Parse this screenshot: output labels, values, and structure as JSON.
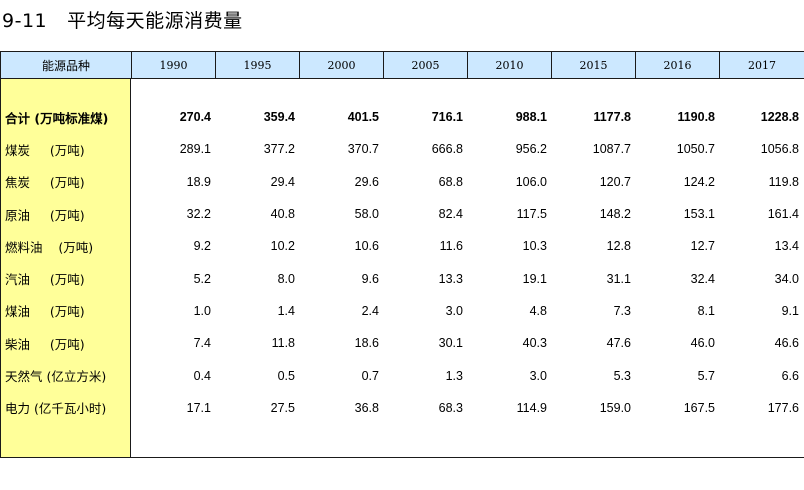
{
  "title": {
    "number": "9-11",
    "text": "平均每天能源消费量"
  },
  "table": {
    "corner_label": "能源品种",
    "years": [
      "1990",
      "1995",
      "2000",
      "2005",
      "2010",
      "2015",
      "2016",
      "2017"
    ],
    "rows": [
      {
        "label": "合计 (万吨标准煤)",
        "bold": true,
        "values": [
          "270.4",
          "359.4",
          "401.5",
          "716.1",
          "988.1",
          "1177.8",
          "1190.8",
          "1228.8"
        ]
      },
      {
        "label": "煤炭     (万吨)",
        "values": [
          "289.1",
          "377.2",
          "370.7",
          "666.8",
          "956.2",
          "1087.7",
          "1050.7",
          "1056.8"
        ]
      },
      {
        "label": "焦炭     (万吨)",
        "values": [
          "18.9",
          "29.4",
          "29.6",
          "68.8",
          "106.0",
          "120.7",
          "124.2",
          "119.8"
        ]
      },
      {
        "label": "原油     (万吨)",
        "values": [
          "32.2",
          "40.8",
          "58.0",
          "82.4",
          "117.5",
          "148.2",
          "153.1",
          "161.4"
        ]
      },
      {
        "label": "燃料油    (万吨)",
        "values": [
          "9.2",
          "10.2",
          "10.6",
          "11.6",
          "10.3",
          "12.8",
          "12.7",
          "13.4"
        ]
      },
      {
        "label": "汽油     (万吨)",
        "values": [
          "5.2",
          "8.0",
          "9.6",
          "13.3",
          "19.1",
          "31.1",
          "32.4",
          "34.0"
        ]
      },
      {
        "label": "煤油     (万吨)",
        "values": [
          "1.0",
          "1.4",
          "2.4",
          "3.0",
          "4.8",
          "7.3",
          "8.1",
          "9.1"
        ]
      },
      {
        "label": "柴油     (万吨)",
        "values": [
          "7.4",
          "11.8",
          "18.6",
          "30.1",
          "40.3",
          "47.6",
          "46.0",
          "46.6"
        ]
      },
      {
        "label": "天然气 (亿立方米)",
        "values": [
          "0.4",
          "0.5",
          "0.7",
          "1.3",
          "3.0",
          "5.3",
          "5.7",
          "6.6"
        ]
      },
      {
        "label": "电力 (亿千瓦小时)",
        "values": [
          "17.1",
          "27.5",
          "36.8",
          "68.3",
          "114.9",
          "159.0",
          "167.5",
          "177.6"
        ]
      }
    ]
  },
  "colors": {
    "header_bg": "#cce8ff",
    "label_col_bg": "#ffff99"
  }
}
